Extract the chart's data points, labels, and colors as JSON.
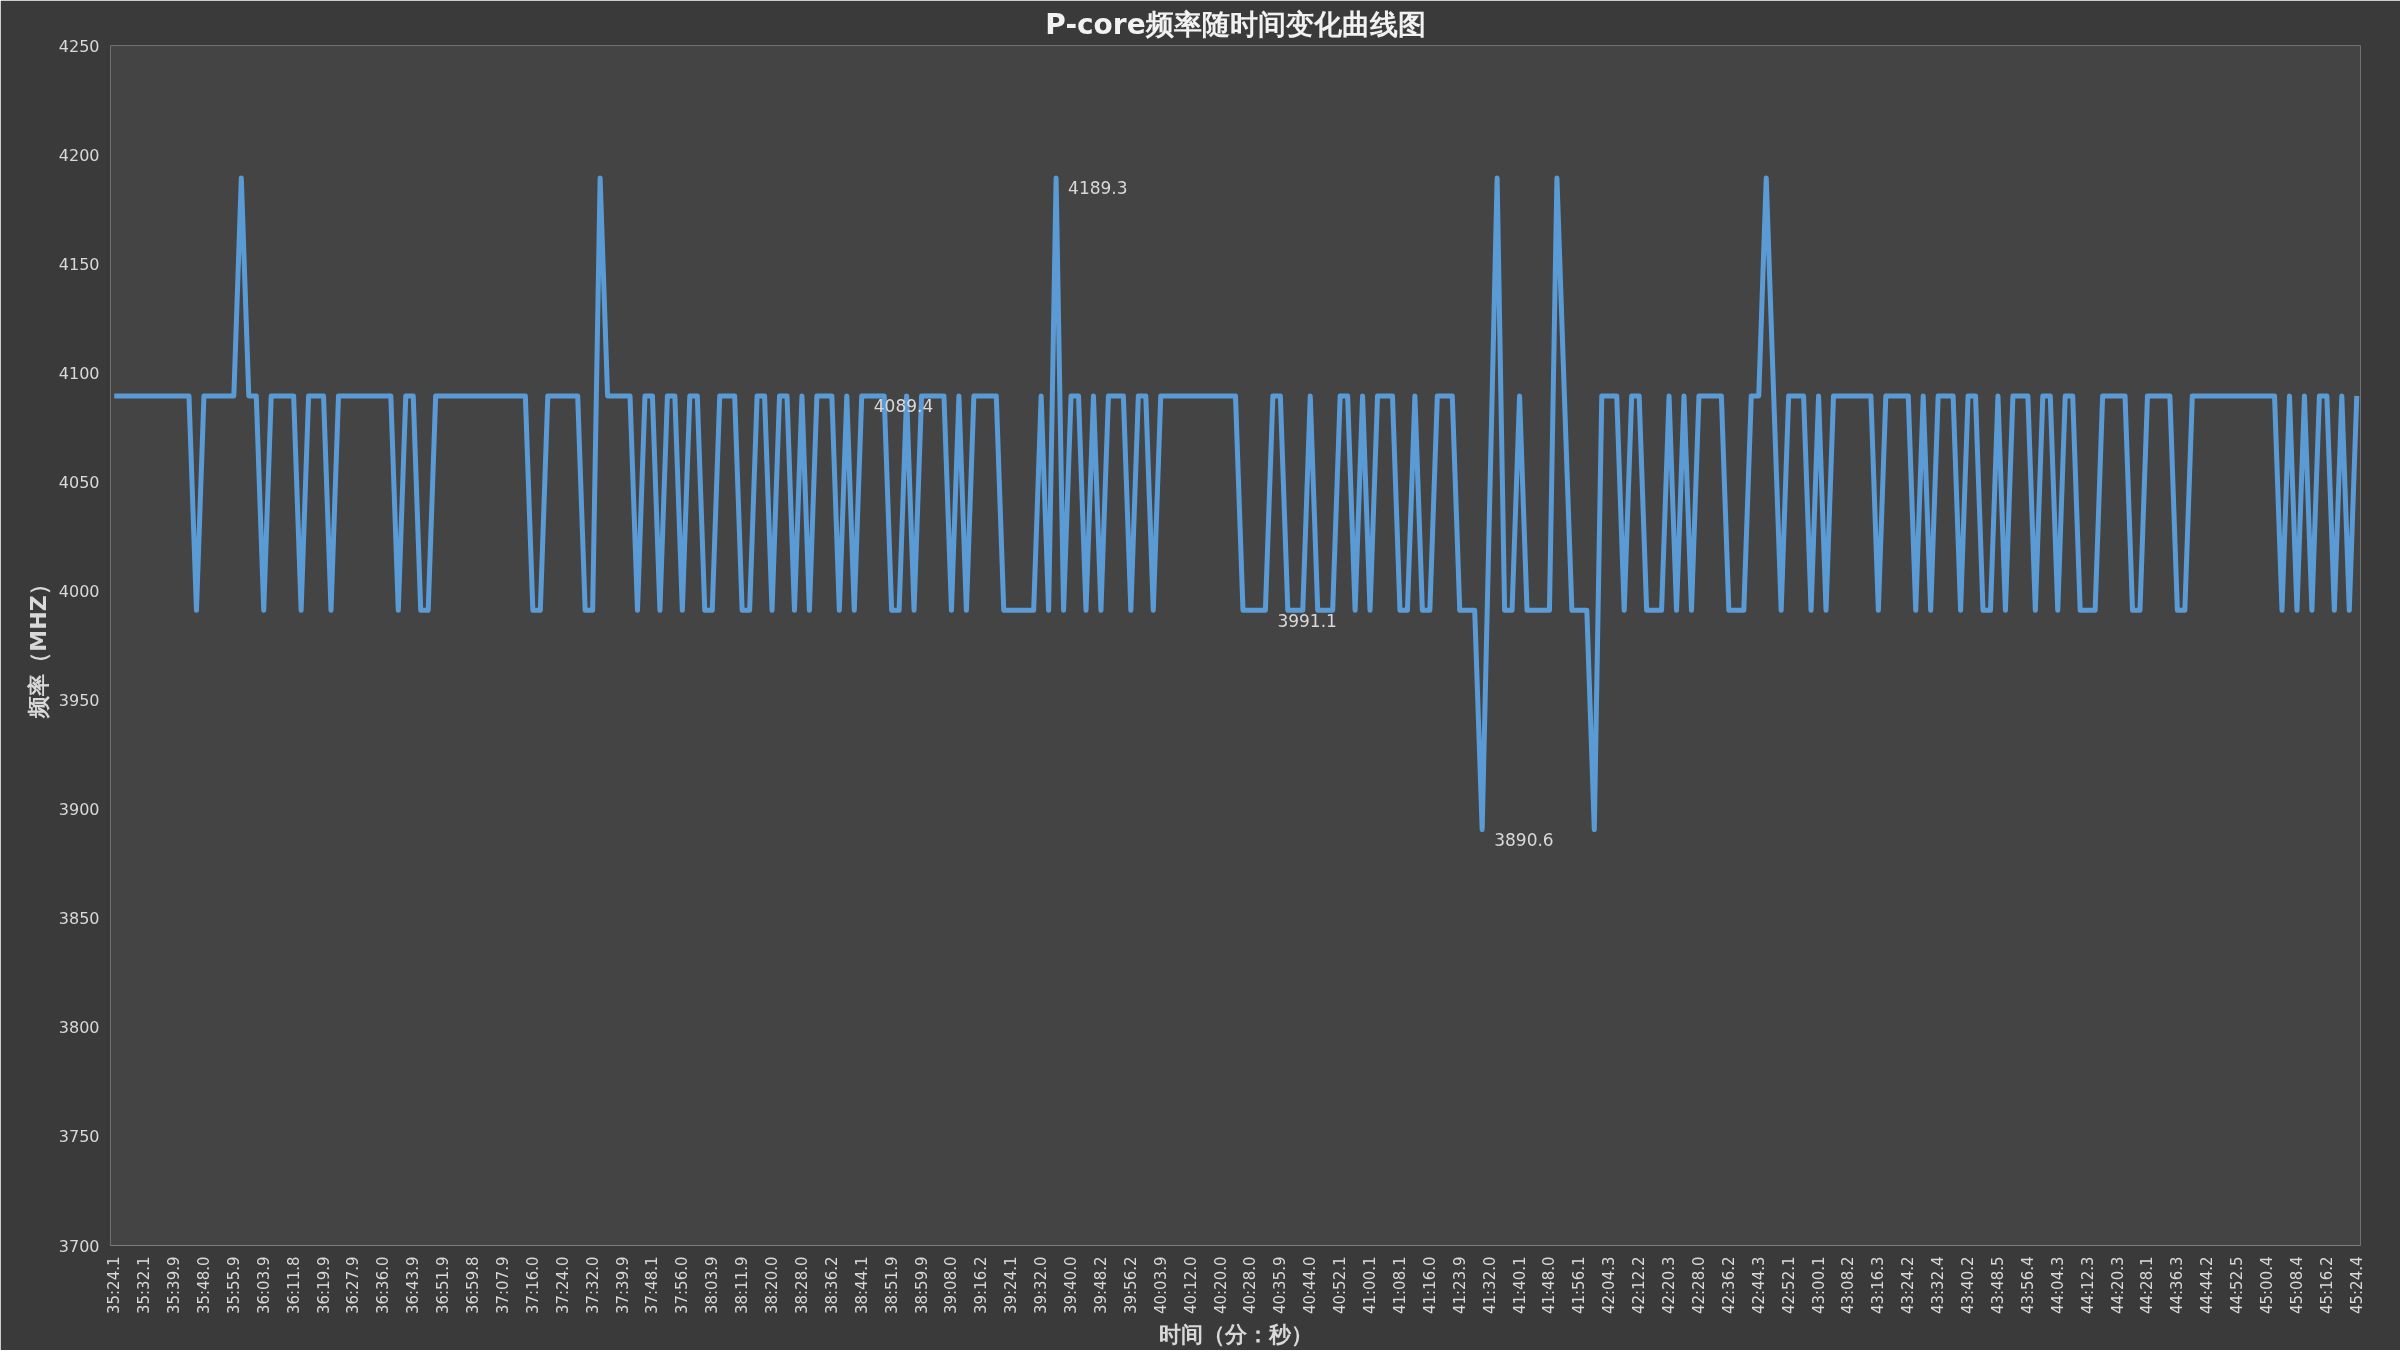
{
  "chart_data": {
    "type": "line",
    "title": "P-core频率随时间变化曲线图",
    "xlabel": "时间（分：秒）",
    "ylabel": "频率（MHZ）",
    "categories": [
      "35:24.1",
      null,
      null,
      null,
      "35:32.1",
      null,
      null,
      null,
      "35:39.9",
      null,
      null,
      null,
      "35:48.0",
      null,
      null,
      null,
      "35:55.9",
      null,
      null,
      null,
      "36:03.9",
      null,
      null,
      null,
      "36:11.8",
      null,
      null,
      null,
      "36:19.9",
      null,
      null,
      null,
      "36:27.9",
      null,
      null,
      null,
      "36:36.0",
      null,
      null,
      null,
      "36:43.9",
      null,
      null,
      null,
      "36:51.9",
      null,
      null,
      null,
      "36:59.8",
      null,
      null,
      null,
      "37:07.9",
      null,
      null,
      null,
      "37:16.0",
      null,
      null,
      null,
      "37:24.0",
      null,
      null,
      null,
      "37:32.0",
      null,
      null,
      null,
      "37:39.9",
      null,
      null,
      null,
      "37:48.1",
      null,
      null,
      null,
      "37:56.0",
      null,
      null,
      null,
      "38:03.9",
      null,
      null,
      null,
      "38:11.9",
      null,
      null,
      null,
      "38:20.0",
      null,
      null,
      null,
      "38:28.0",
      null,
      null,
      null,
      "38:36.2",
      null,
      null,
      null,
      "38:44.1",
      null,
      null,
      null,
      "38:51.9",
      null,
      null,
      null,
      "38:59.9",
      null,
      null,
      null,
      "39:08.0",
      null,
      null,
      null,
      "39:16.2",
      null,
      null,
      null,
      "39:24.1",
      null,
      null,
      null,
      "39:32.0",
      null,
      null,
      null,
      "39:40.0",
      null,
      null,
      null,
      "39:48.2",
      null,
      null,
      null,
      "39:56.2",
      null,
      null,
      null,
      "40:03.9",
      null,
      null,
      null,
      "40:12.0",
      null,
      null,
      null,
      "40:20.0",
      null,
      null,
      null,
      "40:28.0",
      null,
      null,
      null,
      "40:35.9",
      null,
      null,
      null,
      "40:44.0",
      null,
      null,
      null,
      "40:52.1",
      null,
      null,
      null,
      "41:00.1",
      null,
      null,
      null,
      "41:08.1",
      null,
      null,
      null,
      "41:16.0",
      null,
      null,
      null,
      "41:23.9",
      null,
      null,
      null,
      "41:32.0",
      null,
      null,
      null,
      "41:40.1",
      null,
      null,
      null,
      "41:48.0",
      null,
      null,
      null,
      "41:56.1",
      null,
      null,
      null,
      "42:04.3",
      null,
      null,
      null,
      "42:12.2",
      null,
      null,
      null,
      "42:20.3",
      null,
      null,
      null,
      "42:28.0",
      null,
      null,
      null,
      "42:36.2",
      null,
      null,
      null,
      "42:44.3",
      null,
      null,
      null,
      "42:52.1",
      null,
      null,
      null,
      "43:00.1",
      null,
      null,
      null,
      "43:08.2",
      null,
      null,
      null,
      "43:16.3",
      null,
      null,
      null,
      "43:24.2",
      null,
      null,
      null,
      "43:32.4",
      null,
      null,
      null,
      "43:40.2",
      null,
      null,
      null,
      "43:48.5",
      null,
      null,
      null,
      "43:56.4",
      null,
      null,
      null,
      "44:04.3",
      null,
      null,
      null,
      "44:12.3",
      null,
      null,
      null,
      "44:20.3",
      null,
      null,
      null,
      "44:28.1",
      null,
      null,
      null,
      "44:36.3",
      null,
      null,
      null,
      "44:44.2",
      null,
      null,
      null,
      "44:52.5",
      null,
      null,
      null,
      "45:00.4",
      null,
      null,
      null,
      "45:08.4",
      null,
      null,
      null,
      "45:16.2",
      null,
      null,
      null,
      "45:24.4"
    ],
    "series": [
      {
        "color": "#5b9bd5",
        "values": [
          4089.4,
          4089.4,
          4089.4,
          4089.4,
          4089.4,
          4089.4,
          4089.4,
          4089.4,
          4089.4,
          4089.4,
          4089.4,
          3991.1,
          4089.4,
          4089.4,
          4089.4,
          4089.4,
          4089.4,
          4189.3,
          4089.4,
          4089.4,
          3991.1,
          4089.4,
          4089.4,
          4089.4,
          4089.4,
          3991.1,
          4089.4,
          4089.4,
          4089.4,
          3991.1,
          4089.4,
          4089.4,
          4089.4,
          4089.4,
          4089.4,
          4089.4,
          4089.4,
          4089.4,
          3991.1,
          4089.4,
          4089.4,
          3991.1,
          3991.1,
          4089.4,
          4089.4,
          4089.4,
          4089.4,
          4089.4,
          4089.4,
          4089.4,
          4089.4,
          4089.4,
          4089.4,
          4089.4,
          4089.4,
          4089.4,
          3991.1,
          3991.1,
          4089.4,
          4089.4,
          4089.4,
          4089.4,
          4089.4,
          3991.1,
          3991.1,
          4189.3,
          4089.4,
          4089.4,
          4089.4,
          4089.4,
          3991.1,
          4089.4,
          4089.4,
          3991.1,
          4089.4,
          4089.4,
          3991.1,
          4089.4,
          4089.4,
          3991.1,
          3991.1,
          4089.4,
          4089.4,
          4089.4,
          3991.1,
          3991.1,
          4089.4,
          4089.4,
          3991.1,
          4089.4,
          4089.4,
          3991.1,
          4089.4,
          3991.1,
          4089.4,
          4089.4,
          4089.4,
          3991.1,
          4089.4,
          3991.1,
          4089.4,
          4089.4,
          4089.4,
          4089.4,
          3991.1,
          3991.1,
          4089.4,
          3991.1,
          4089.4,
          4089.4,
          4089.4,
          4089.4,
          3991.1,
          4089.4,
          3991.1,
          4089.4,
          4089.4,
          4089.4,
          4089.4,
          3991.1,
          3991.1,
          3991.1,
          3991.1,
          3991.1,
          4089.4,
          3991.1,
          4189.3,
          3991.1,
          4089.4,
          4089.4,
          3991.1,
          4089.4,
          3991.1,
          4089.4,
          4089.4,
          4089.4,
          3991.1,
          4089.4,
          4089.4,
          3991.1,
          4089.4,
          4089.4,
          4089.4,
          4089.4,
          4089.4,
          4089.4,
          4089.4,
          4089.4,
          4089.4,
          4089.4,
          4089.4,
          3991.1,
          3991.1,
          3991.1,
          3991.1,
          4089.4,
          4089.4,
          3991.1,
          3991.1,
          3991.1,
          4089.4,
          3991.1,
          3991.1,
          3991.1,
          4089.4,
          4089.4,
          3991.1,
          4089.4,
          3991.1,
          4089.4,
          4089.4,
          4089.4,
          3991.1,
          3991.1,
          4089.4,
          3991.1,
          3991.1,
          4089.4,
          4089.4,
          4089.4,
          3991.1,
          3991.1,
          3991.1,
          3890.6,
          4040,
          4189.3,
          3991.1,
          3991.1,
          4089.4,
          3991.1,
          3991.1,
          3991.1,
          3991.1,
          4189.3,
          4089.4,
          3991.1,
          3991.1,
          3991.1,
          3890.6,
          4089.4,
          4089.4,
          4089.4,
          3991.1,
          4089.4,
          4089.4,
          3991.1,
          3991.1,
          3991.1,
          4089.4,
          3991.1,
          4089.4,
          3991.1,
          4089.4,
          4089.4,
          4089.4,
          4089.4,
          3991.1,
          3991.1,
          3991.1,
          4089.4,
          4089.4,
          4189.3,
          4089.4,
          3991.1,
          4089.4,
          4089.4,
          4089.4,
          3991.1,
          4089.4,
          3991.1,
          4089.4,
          4089.4,
          4089.4,
          4089.4,
          4089.4,
          4089.4,
          3991.1,
          4089.4,
          4089.4,
          4089.4,
          4089.4,
          3991.1,
          4089.4,
          3991.1,
          4089.4,
          4089.4,
          4089.4,
          3991.1,
          4089.4,
          4089.4,
          3991.1,
          3991.1,
          4089.4,
          3991.1,
          4089.4,
          4089.4,
          4089.4,
          3991.1,
          4089.4,
          4089.4,
          3991.1,
          4089.4,
          4089.4,
          3991.1,
          3991.1,
          3991.1,
          4089.4,
          4089.4,
          4089.4,
          4089.4,
          3991.1,
          3991.1,
          4089.4,
          4089.4,
          4089.4,
          4089.4,
          3991.1,
          3991.1,
          4089.4,
          4089.4,
          4089.4,
          4089.4,
          4089.4,
          4089.4,
          4089.4,
          4089.4,
          4089.4,
          4089.4,
          4089.4,
          4089.4,
          3991.1,
          4089.4,
          3991.1,
          4089.4,
          3991.1,
          4089.4,
          4089.4,
          3991.1,
          4089.4,
          3991.1,
          4089.4
        ],
        "value_labels": [
          null,
          null,
          null,
          null,
          null,
          null,
          null,
          null,
          null,
          null,
          null,
          null,
          null,
          null,
          null,
          null,
          null,
          null,
          null,
          null,
          null,
          null,
          null,
          null,
          null,
          null,
          null,
          null,
          null,
          null,
          null,
          null,
          null,
          null,
          null,
          null,
          null,
          null,
          null,
          null,
          null,
          null,
          null,
          null,
          null,
          null,
          null,
          null,
          null,
          null,
          null,
          null,
          null,
          null,
          null,
          null,
          null,
          null,
          null,
          null,
          null,
          null,
          null,
          null,
          null,
          null,
          null,
          null,
          null,
          null,
          null,
          null,
          null,
          null,
          null,
          null,
          null,
          null,
          null,
          null,
          null,
          null,
          null,
          null,
          null,
          null,
          null,
          null,
          null,
          null,
          null,
          null,
          null,
          null,
          null,
          null,
          null,
          null,
          null,
          null,
          "4089.4",
          null,
          null,
          null,
          null,
          null,
          null,
          null,
          null,
          null,
          null,
          null,
          null,
          null,
          null,
          null,
          null,
          null,
          null,
          null,
          null,
          null,
          null,
          null,
          null,
          null,
          "4189.3",
          null,
          null,
          null,
          null,
          null,
          null,
          null,
          null,
          null,
          null,
          null,
          null,
          null,
          null,
          null,
          null,
          null,
          null,
          null,
          null,
          null,
          null,
          null,
          null,
          null,
          null,
          null,
          "3991.1",
          null,
          null,
          null,
          null,
          null,
          null,
          null,
          null,
          null,
          null,
          null,
          null,
          null,
          null,
          null,
          null,
          null,
          null,
          null,
          null,
          null,
          null,
          null,
          null,
          null,
          null,
          null,
          null,
          "3890.6",
          null,
          null,
          null,
          null,
          null,
          null,
          null,
          null,
          null,
          null,
          null,
          null,
          null,
          null,
          null,
          null,
          null,
          null,
          null,
          null,
          null,
          null,
          null,
          null,
          null,
          null,
          null,
          null,
          null,
          null,
          null,
          null,
          null,
          null,
          null,
          null,
          null,
          null,
          null,
          null,
          null,
          null,
          null,
          null,
          null,
          null,
          null,
          null,
          null,
          null,
          null,
          null,
          null,
          null,
          null,
          null,
          null,
          null,
          null,
          null,
          null,
          null,
          null,
          null,
          null,
          null,
          null,
          null,
          null,
          null,
          null,
          null,
          null,
          null,
          null,
          null,
          null,
          null,
          null,
          null,
          null,
          null,
          null,
          null,
          null,
          null,
          null,
          null,
          null,
          null,
          null,
          null,
          null,
          null,
          null,
          null,
          null,
          null,
          null,
          null,
          null,
          null,
          null,
          null,
          null,
          null,
          null,
          null,
          null,
          null,
          null,
          null,
          null,
          null,
          null,
          null,
          null
        ]
      }
    ],
    "ylim": [
      3700,
      4250
    ],
    "yticks": [
      3700,
      3750,
      3800,
      3850,
      3900,
      3950,
      4000,
      4050,
      4100,
      4150,
      4200,
      4250
    ],
    "grid": false,
    "marker": "none",
    "line_style": "solid"
  }
}
